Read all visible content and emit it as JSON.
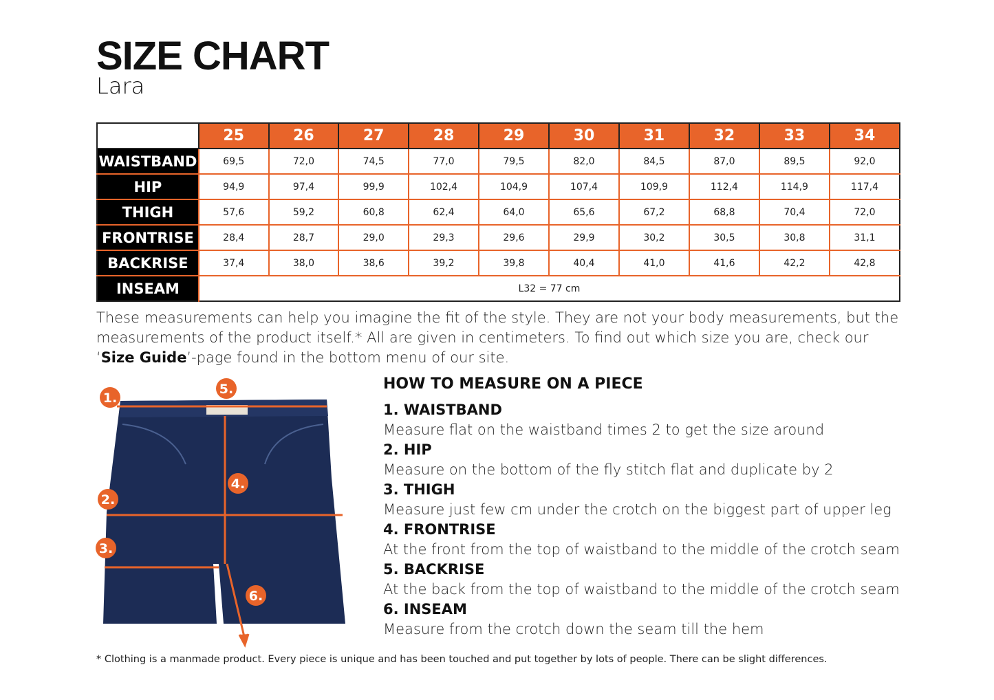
{
  "header": {
    "title": "SIZE CHART",
    "subtitle": "Lara"
  },
  "table": {
    "sizes": [
      "25",
      "26",
      "27",
      "28",
      "29",
      "30",
      "31",
      "32",
      "33",
      "34"
    ],
    "rows": [
      {
        "label": "WAISTBAND",
        "values": [
          "69,5",
          "72,0",
          "74,5",
          "77,0",
          "79,5",
          "82,0",
          "84,5",
          "87,0",
          "89,5",
          "92,0"
        ]
      },
      {
        "label": "HIP",
        "values": [
          "94,9",
          "97,4",
          "99,9",
          "102,4",
          "104,9",
          "107,4",
          "109,9",
          "112,4",
          "114,9",
          "117,4"
        ]
      },
      {
        "label": "THIGH",
        "values": [
          "57,6",
          "59,2",
          "60,8",
          "62,4",
          "64,0",
          "65,6",
          "67,2",
          "68,8",
          "70,4",
          "72,0"
        ]
      },
      {
        "label": "FRONTRISE",
        "values": [
          "28,4",
          "28,7",
          "29,0",
          "29,3",
          "29,6",
          "29,9",
          "30,2",
          "30,5",
          "30,8",
          "31,1"
        ]
      },
      {
        "label": "BACKRISE",
        "values": [
          "37,4",
          "38,0",
          "38,6",
          "39,2",
          "39,8",
          "40,4",
          "41,0",
          "41,6",
          "42,2",
          "42,8"
        ]
      }
    ],
    "inseam": {
      "label": "INSEAM",
      "value": "L32 = 77 cm"
    }
  },
  "intro": {
    "text1": "These measurements can help you imagine the fit of the style. They are not your body measurements, but the measurements of the product itself.* All are given in centimeters. To find out which size you are, check our ‘",
    "link": "Size Guide",
    "text2": "’-page found in the bottom menu of our site."
  },
  "diagram": {
    "markers": [
      "1.",
      "2.",
      "3.",
      "4.",
      "5.",
      "6."
    ]
  },
  "how": {
    "title": "HOW TO MEASURE ON A PIECE",
    "items": [
      {
        "name": "1. WAISTBAND",
        "desc": "Measure flat on the waistband times 2 to get the size around"
      },
      {
        "name": "2. HIP",
        "desc": "Measure on the bottom of the fly stitch flat and duplicate by 2"
      },
      {
        "name": "3. THIGH",
        "desc": "Measure just few cm under the crotch on the biggest part of upper leg"
      },
      {
        "name": "4. FRONTRISE",
        "desc": "At the front from the top of waistband to the middle of the crotch seam"
      },
      {
        "name": "5. BACKRISE",
        "desc": "At the back from the top of waistband to the middle of the crotch seam"
      },
      {
        "name": "6. INSEAM",
        "desc": "Measure from the crotch down the seam till the hem"
      }
    ]
  },
  "footnote": "* Clothing is a manmade product. Every piece is unique and has been touched and put together by lots of people. There can be slight differences.",
  "colors": {
    "accent": "#e8642a",
    "denim": "#1c2c55"
  }
}
